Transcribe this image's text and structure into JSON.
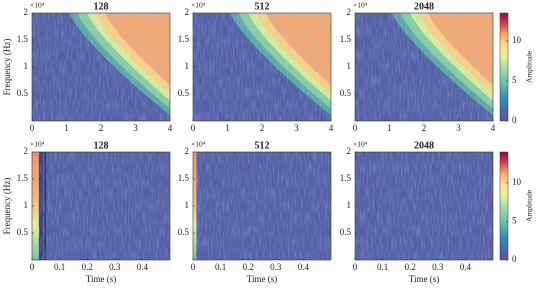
{
  "chart_data": [
    {
      "type": "spectrogram",
      "title": "128",
      "ylabel": "Frequency (Hz)",
      "y_multiplier": "×10⁴",
      "xlim": [
        0,
        4
      ],
      "xticks": [
        0,
        1,
        2,
        3,
        4
      ],
      "ylim": [
        0,
        20000
      ],
      "yticks": [
        {
          "value": 5000,
          "label": "0.5"
        },
        {
          "value": 10000,
          "label": "1"
        },
        {
          "value": 15000,
          "label": "1.5"
        },
        {
          "value": 20000,
          "label": "2"
        }
      ]
    },
    {
      "type": "spectrogram",
      "title": "512",
      "y_multiplier": "×10⁴",
      "xlim": [
        0,
        4
      ],
      "xticks": [
        0,
        1,
        2,
        3,
        4
      ],
      "ylim": [
        0,
        20000
      ],
      "yticks": [
        {
          "value": 5000,
          "label": "0.5"
        },
        {
          "value": 10000,
          "label": "1"
        },
        {
          "value": 15000,
          "label": "1.5"
        },
        {
          "value": 20000,
          "label": "2"
        }
      ]
    },
    {
      "type": "spectrogram",
      "title": "2048",
      "y_multiplier": "×10⁴",
      "xlim": [
        0,
        4
      ],
      "xticks": [
        0,
        1,
        2,
        3,
        4
      ],
      "ylim": [
        0,
        20000
      ],
      "yticks": [
        {
          "value": 5000,
          "label": "0.5"
        },
        {
          "value": 10000,
          "label": "1"
        },
        {
          "value": 15000,
          "label": "1.5"
        },
        {
          "value": 20000,
          "label": "2"
        }
      ],
      "colorbar": {
        "label": "Amplitude",
        "lim": [
          0,
          13.5
        ],
        "ticks": [
          0,
          5,
          10
        ]
      }
    },
    {
      "type": "spectrogram",
      "title": "128",
      "ylabel": "Frequency (Hz)",
      "xlabel": "Time (s)",
      "y_multiplier": "×10⁴",
      "xlim": [
        0,
        0.5
      ],
      "xticks": [
        0,
        0.1,
        0.2,
        0.3,
        0.4
      ],
      "ylim": [
        0,
        20000
      ],
      "yticks": [
        {
          "value": 5000,
          "label": "0.5"
        },
        {
          "value": 10000,
          "label": "1"
        },
        {
          "value": 15000,
          "label": "1.5"
        },
        {
          "value": 20000,
          "label": "2"
        }
      ]
    },
    {
      "type": "spectrogram",
      "title": "512",
      "xlabel": "Time (s)",
      "y_multiplier": "×10⁴",
      "xlim": [
        0,
        0.5
      ],
      "xticks": [
        0,
        0.1,
        0.2,
        0.3,
        0.4
      ],
      "ylim": [
        0,
        20000
      ],
      "yticks": [
        {
          "value": 5000,
          "label": "0.5"
        },
        {
          "value": 10000,
          "label": "1"
        },
        {
          "value": 15000,
          "label": "1.5"
        },
        {
          "value": 20000,
          "label": "2"
        }
      ]
    },
    {
      "type": "spectrogram",
      "title": "2048",
      "xlabel": "Time (s)",
      "y_multiplier": "×10⁴",
      "xlim": [
        0,
        0.5
      ],
      "xticks": [
        0,
        0.1,
        0.2,
        0.3,
        0.4
      ],
      "ylim": [
        0,
        20000
      ],
      "yticks": [
        {
          "value": 5000,
          "label": "0.5"
        },
        {
          "value": 10000,
          "label": "1"
        },
        {
          "value": 15000,
          "label": "1.5"
        },
        {
          "value": 20000,
          "label": "2"
        }
      ],
      "colorbar": {
        "label": "Amplitude",
        "lim": [
          0,
          14
        ],
        "ticks": [
          0,
          5,
          10
        ]
      }
    }
  ]
}
